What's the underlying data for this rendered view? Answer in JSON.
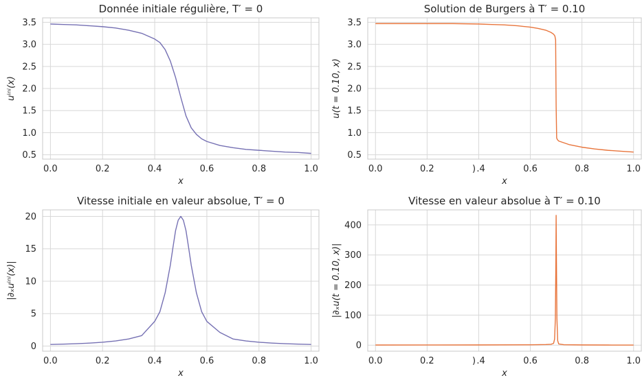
{
  "colors": {
    "purple": "#7570b3",
    "orange": "#e8743b"
  },
  "chart_data": [
    {
      "type": "line",
      "title": "Donnée initiale régulière, T′ = 0",
      "xlabel": "x",
      "ylabel": "uⁱⁿⁱ(x)",
      "xlim": [
        -0.03,
        1.03
      ],
      "ylim": [
        0.4,
        3.6
      ],
      "xticks": [
        0.0,
        0.2,
        0.4,
        0.6,
        0.8,
        1.0
      ],
      "xtick_labels": [
        "0.0",
        "0.2",
        "0.4",
        "0.6",
        "0.8",
        "1.0"
      ],
      "yticks": [
        0.5,
        1.0,
        1.5,
        2.0,
        2.5,
        3.0,
        3.5
      ],
      "ytick_labels": [
        "0.5",
        "1.0",
        "1.5",
        "2.0",
        "2.5",
        "3.0",
        "3.5"
      ],
      "color": "#7570b3",
      "series": [
        {
          "x": [
            0.0,
            0.05,
            0.1,
            0.15,
            0.2,
            0.25,
            0.3,
            0.35,
            0.4,
            0.42,
            0.44,
            0.46,
            0.48,
            0.5,
            0.52,
            0.54,
            0.56,
            0.58,
            0.6,
            0.65,
            0.7,
            0.75,
            0.8,
            0.85,
            0.9,
            0.95,
            1.0
          ],
          "y": [
            3.46,
            3.45,
            3.44,
            3.42,
            3.4,
            3.37,
            3.32,
            3.25,
            3.12,
            3.04,
            2.88,
            2.62,
            2.25,
            1.8,
            1.38,
            1.11,
            0.96,
            0.86,
            0.8,
            0.71,
            0.66,
            0.62,
            0.6,
            0.58,
            0.56,
            0.55,
            0.53
          ]
        }
      ]
    },
    {
      "type": "line",
      "title": "Solution de Burgers à T′ = 0.10",
      "xlabel": "x",
      "ylabel": "u(t = 0.10, x)",
      "xlim": [
        -0.03,
        1.03
      ],
      "ylim": [
        0.4,
        3.6
      ],
      "xticks": [
        0.0,
        0.2,
        0.4,
        0.6,
        0.8,
        1.0
      ],
      "xtick_labels": [
        "0.0",
        "0.2",
        ") .4",
        "0.6",
        "0.8",
        "1.0"
      ],
      "yticks": [
        0.5,
        1.0,
        1.5,
        2.0,
        2.5,
        3.0,
        3.5
      ],
      "ytick_labels": [
        "0.5",
        "1.0",
        "1.5",
        "2.0",
        "2.5",
        "3.0",
        "3.5"
      ],
      "color": "#e8743b",
      "series": [
        {
          "x": [
            0.0,
            0.1,
            0.2,
            0.3,
            0.4,
            0.45,
            0.5,
            0.55,
            0.6,
            0.63,
            0.66,
            0.68,
            0.69,
            0.695,
            0.698,
            0.7,
            0.702,
            0.705,
            0.71,
            0.75,
            0.8,
            0.85,
            0.9,
            0.95,
            1.0
          ],
          "y": [
            3.47,
            3.47,
            3.47,
            3.47,
            3.46,
            3.45,
            3.44,
            3.42,
            3.39,
            3.36,
            3.32,
            3.27,
            3.23,
            3.19,
            3.1,
            1.6,
            0.88,
            0.84,
            0.81,
            0.73,
            0.67,
            0.63,
            0.6,
            0.58,
            0.56
          ]
        }
      ]
    },
    {
      "type": "line",
      "title": "Vitesse initiale en valeur absolue, T′ = 0",
      "xlabel": "x",
      "ylabel": "|∂ₓuⁱⁿⁱ(x)|",
      "xlim": [
        -0.03,
        1.03
      ],
      "ylim": [
        -0.8,
        21.0
      ],
      "xticks": [
        0.0,
        0.2,
        0.4,
        0.6,
        0.8,
        1.0
      ],
      "xtick_labels": [
        "0.0",
        "0.2",
        "0.4",
        "0.6",
        "0.8",
        "1.0"
      ],
      "yticks": [
        0,
        5,
        10,
        15,
        20
      ],
      "ytick_labels": [
        "0",
        "5",
        "10",
        "15",
        "20"
      ],
      "color": "#7570b3",
      "series": [
        {
          "x": [
            0.0,
            0.05,
            0.1,
            0.15,
            0.2,
            0.25,
            0.3,
            0.35,
            0.4,
            0.42,
            0.44,
            0.46,
            0.47,
            0.48,
            0.49,
            0.5,
            0.51,
            0.52,
            0.53,
            0.54,
            0.56,
            0.58,
            0.6,
            0.65,
            0.7,
            0.75,
            0.8,
            0.85,
            0.9,
            0.95,
            1.0
          ],
          "y": [
            0.24,
            0.29,
            0.36,
            0.45,
            0.58,
            0.78,
            1.09,
            1.6,
            3.8,
            5.3,
            8.2,
            12.5,
            15.2,
            17.8,
            19.4,
            20.0,
            19.4,
            17.8,
            15.2,
            12.5,
            8.2,
            5.3,
            3.8,
            2.1,
            1.09,
            0.78,
            0.58,
            0.45,
            0.36,
            0.29,
            0.24
          ]
        }
      ]
    },
    {
      "type": "line",
      "title": "Vitesse en valeur absolue à T′ = 0.10",
      "xlabel": "x",
      "ylabel": "|∂ₓu(t = 0.10, x)|",
      "xlim": [
        -0.03,
        1.03
      ],
      "ylim": [
        -20,
        450
      ],
      "xticks": [
        0.0,
        0.2,
        0.4,
        0.6,
        0.8,
        1.0
      ],
      "xtick_labels": [
        "0.0",
        "0.2",
        ") .4",
        "0.6",
        "0.8",
        "1.0"
      ],
      "yticks": [
        0,
        100,
        200,
        300,
        400
      ],
      "ytick_labels": [
        "0",
        "100",
        "200",
        "300",
        "400"
      ],
      "color": "#e8743b",
      "series": [
        {
          "x": [
            0.0,
            0.2,
            0.4,
            0.6,
            0.66,
            0.68,
            0.69,
            0.694,
            0.697,
            0.699,
            0.7,
            0.701,
            0.703,
            0.706,
            0.71,
            0.73,
            0.8,
            0.9,
            1.0
          ],
          "y": [
            0.5,
            0.6,
            0.8,
            1.3,
            2.0,
            3.0,
            6.0,
            20,
            90,
            280,
            432,
            300,
            90,
            15,
            4,
            1.5,
            0.8,
            0.5,
            0.4
          ]
        }
      ]
    }
  ]
}
